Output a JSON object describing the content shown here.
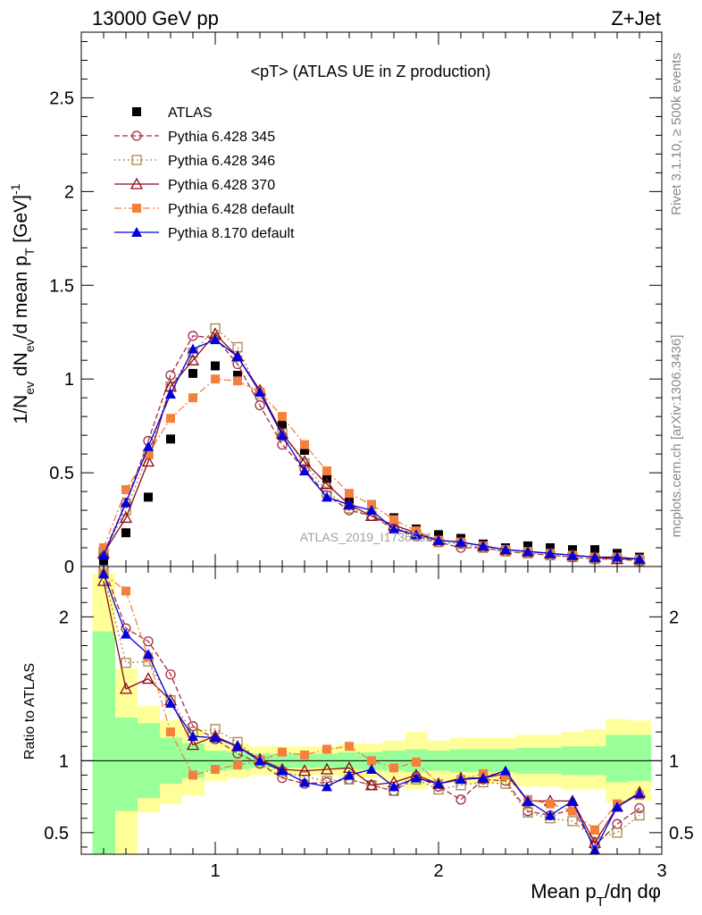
{
  "header": {
    "left": "13000 GeV pp",
    "right": "Z+Jet"
  },
  "side_labels": {
    "rivet": "Rivet 3.1.10, ≥ 500k events",
    "mcplots": "mcplots.cern.ch [arXiv:1306.3436]"
  },
  "watermark": "ATLAS_2019_I1736531",
  "chart_data": [
    {
      "type": "scatter",
      "panel": "main",
      "title": "<pT> (ATLAS UE in Z production)",
      "ylabel": "1/N_ev dN_ev/d mean p_T [GeV]^-1",
      "xlim": [
        0.4,
        3.0
      ],
      "ylim": [
        0,
        2.85
      ],
      "yticks": [
        0,
        0.5,
        1,
        1.5,
        2,
        2.5
      ],
      "ytick_labels": [
        "0",
        "0.5",
        "1",
        "1.5",
        "2",
        "2.5"
      ],
      "legend_position": "top-left",
      "x": [
        0.5,
        0.6,
        0.7,
        0.8,
        0.9,
        1.0,
        1.1,
        1.2,
        1.3,
        1.4,
        1.5,
        1.6,
        1.7,
        1.8,
        1.9,
        2.0,
        2.1,
        2.2,
        2.3,
        2.4,
        2.5,
        2.6,
        2.7,
        2.8,
        2.9
      ],
      "series": [
        {
          "name": "ATLAS",
          "color": "#000000",
          "marker": "square-filled",
          "line": "none",
          "values": [
            0.03,
            0.18,
            0.37,
            0.68,
            1.03,
            1.07,
            1.02,
            0.93,
            0.76,
            0.62,
            0.47,
            0.35,
            0.33,
            0.26,
            0.2,
            0.17,
            0.15,
            0.12,
            0.1,
            0.11,
            0.1,
            0.09,
            0.09,
            0.07,
            0.05
          ]
        },
        {
          "name": "Pythia 6.428 345",
          "color": "#a52a40",
          "marker": "circle-open",
          "line": "dashed",
          "values": [
            0.07,
            0.34,
            0.67,
            1.02,
            1.23,
            1.22,
            1.08,
            0.86,
            0.65,
            0.52,
            0.38,
            0.3,
            0.27,
            0.2,
            0.16,
            0.13,
            0.1,
            0.1,
            0.08,
            0.07,
            0.06,
            0.05,
            0.04,
            0.04,
            0.03
          ]
        },
        {
          "name": "Pythia 6.428 346",
          "color": "#a8854a",
          "marker": "square-open",
          "line": "dotted",
          "values": [
            0.08,
            0.3,
            0.6,
            0.96,
            1.14,
            1.27,
            1.17,
            0.92,
            0.71,
            0.55,
            0.4,
            0.31,
            0.27,
            0.21,
            0.17,
            0.13,
            0.12,
            0.1,
            0.08,
            0.07,
            0.06,
            0.05,
            0.04,
            0.04,
            0.03
          ]
        },
        {
          "name": "Pythia 6.428 370",
          "color": "#8b0a14",
          "marker": "triangle-open",
          "line": "solid",
          "values": [
            0.07,
            0.26,
            0.56,
            0.96,
            1.1,
            1.24,
            1.12,
            0.94,
            0.71,
            0.56,
            0.44,
            0.33,
            0.27,
            0.22,
            0.18,
            0.14,
            0.13,
            0.11,
            0.09,
            0.08,
            0.07,
            0.06,
            0.05,
            0.04,
            0.04
          ]
        },
        {
          "name": "Pythia 6.428 default",
          "color": "#f5803e",
          "marker": "square-filled",
          "line": "dashdot",
          "values": [
            0.1,
            0.41,
            0.6,
            0.79,
            0.9,
            1.0,
            0.99,
            0.93,
            0.8,
            0.65,
            0.51,
            0.39,
            0.33,
            0.25,
            0.19,
            0.14,
            0.13,
            0.11,
            0.09,
            0.08,
            0.07,
            0.06,
            0.05,
            0.05,
            0.04
          ]
        },
        {
          "name": "Pythia 8.170 default",
          "color": "#0000e0",
          "marker": "triangle-filled",
          "line": "solid",
          "values": [
            0.06,
            0.34,
            0.64,
            0.92,
            1.16,
            1.21,
            1.12,
            0.93,
            0.7,
            0.51,
            0.37,
            0.33,
            0.3,
            0.2,
            0.17,
            0.14,
            0.13,
            0.11,
            0.09,
            0.08,
            0.07,
            0.06,
            0.05,
            0.05,
            0.04
          ]
        }
      ]
    },
    {
      "type": "scatter",
      "panel": "ratio",
      "ylabel": "Ratio to ATLAS",
      "xlabel": "Mean p_T/dη dφ",
      "xlim": [
        0.4,
        3.0
      ],
      "ylim": [
        0.35,
        2.35
      ],
      "yticks": [
        0.5,
        1,
        2
      ],
      "ytick_labels": [
        "0.5",
        "1",
        "2"
      ],
      "xticks": [
        1,
        2,
        3
      ],
      "xtick_labels": [
        "1",
        "2",
        "3"
      ],
      "reference_line": 1,
      "x": [
        0.5,
        0.6,
        0.7,
        0.8,
        0.9,
        1.0,
        1.1,
        1.2,
        1.3,
        1.4,
        1.5,
        1.6,
        1.7,
        1.8,
        1.9,
        2.0,
        2.1,
        2.2,
        2.3,
        2.4,
        2.5,
        2.6,
        2.7,
        2.8,
        2.9
      ],
      "bands": {
        "green_low": [
          0.35,
          0.65,
          0.74,
          0.84,
          0.88,
          0.93,
          0.94,
          0.95,
          0.95,
          0.95,
          0.95,
          0.94,
          0.94,
          0.93,
          0.92,
          0.93,
          0.92,
          0.92,
          0.92,
          0.91,
          0.91,
          0.9,
          0.9,
          0.85,
          0.86
        ],
        "green_high": [
          1.9,
          1.3,
          1.26,
          1.16,
          1.12,
          1.07,
          1.06,
          1.05,
          1.05,
          1.05,
          1.05,
          1.06,
          1.06,
          1.07,
          1.08,
          1.07,
          1.08,
          1.08,
          1.08,
          1.09,
          1.09,
          1.1,
          1.1,
          1.18,
          1.18
        ],
        "yellow_low": [
          0.35,
          0.35,
          0.64,
          0.7,
          0.76,
          0.86,
          0.88,
          0.9,
          0.9,
          0.9,
          0.9,
          0.88,
          0.88,
          0.86,
          0.8,
          0.86,
          0.84,
          0.84,
          0.84,
          0.82,
          0.82,
          0.8,
          0.8,
          0.71,
          0.72
        ],
        "yellow_high": [
          2.3,
          1.64,
          1.38,
          1.28,
          1.22,
          1.14,
          1.12,
          1.1,
          1.1,
          1.1,
          1.1,
          1.12,
          1.12,
          1.14,
          1.2,
          1.14,
          1.16,
          1.16,
          1.16,
          1.18,
          1.18,
          1.2,
          1.22,
          1.29,
          1.28
        ]
      },
      "series": [
        {
          "name": "Pythia 6.428 345",
          "color": "#a52a40",
          "marker": "circle-open",
          "line": "dashed",
          "values": [
            2.35,
            1.92,
            1.83,
            1.6,
            1.24,
            1.15,
            1.05,
            0.98,
            0.88,
            0.84,
            0.85,
            0.87,
            0.83,
            0.79,
            0.89,
            0.82,
            0.73,
            0.87,
            0.86,
            0.65,
            0.62,
            0.66,
            0.41,
            0.56,
            0.67
          ]
        },
        {
          "name": "Pythia 6.428 346",
          "color": "#a8854a",
          "marker": "square-open",
          "line": "dotted",
          "values": [
            2.3,
            1.68,
            1.69,
            1.42,
            1.2,
            1.22,
            1.13,
            1.0,
            0.92,
            0.89,
            0.86,
            0.87,
            0.83,
            0.79,
            0.87,
            0.8,
            0.83,
            0.85,
            0.84,
            0.64,
            0.6,
            0.58,
            0.46,
            0.5,
            0.62
          ]
        },
        {
          "name": "Pythia 6.428 370",
          "color": "#8b0a14",
          "marker": "triangle-open",
          "line": "solid",
          "values": [
            2.25,
            1.5,
            1.57,
            1.42,
            1.11,
            1.17,
            1.1,
            1.01,
            0.94,
            0.93,
            0.94,
            0.95,
            0.83,
            0.85,
            0.9,
            0.84,
            0.88,
            0.88,
            0.91,
            0.72,
            0.72,
            0.72,
            0.43,
            0.68,
            0.78
          ]
        },
        {
          "name": "Pythia 6.428 default",
          "color": "#f5803e",
          "marker": "square-filled",
          "line": "dashdot",
          "values": [
            2.3,
            2.18,
            1.72,
            1.2,
            0.9,
            0.94,
            0.97,
            1.0,
            1.06,
            1.04,
            1.08,
            1.1,
            1.0,
            0.95,
            0.99,
            0.84,
            0.87,
            0.91,
            0.9,
            0.73,
            0.7,
            0.65,
            0.52,
            0.7,
            0.76
          ]
        },
        {
          "name": "Pythia 8.170 default",
          "color": "#0000e0",
          "marker": "triangle-filled",
          "line": "solid",
          "values": [
            2.3,
            1.88,
            1.74,
            1.4,
            1.17,
            1.16,
            1.1,
            1.0,
            0.93,
            0.85,
            0.82,
            0.9,
            0.94,
            0.82,
            0.88,
            0.84,
            0.87,
            0.88,
            0.93,
            0.72,
            0.62,
            0.72,
            0.38,
            0.68,
            0.77
          ]
        }
      ]
    }
  ]
}
